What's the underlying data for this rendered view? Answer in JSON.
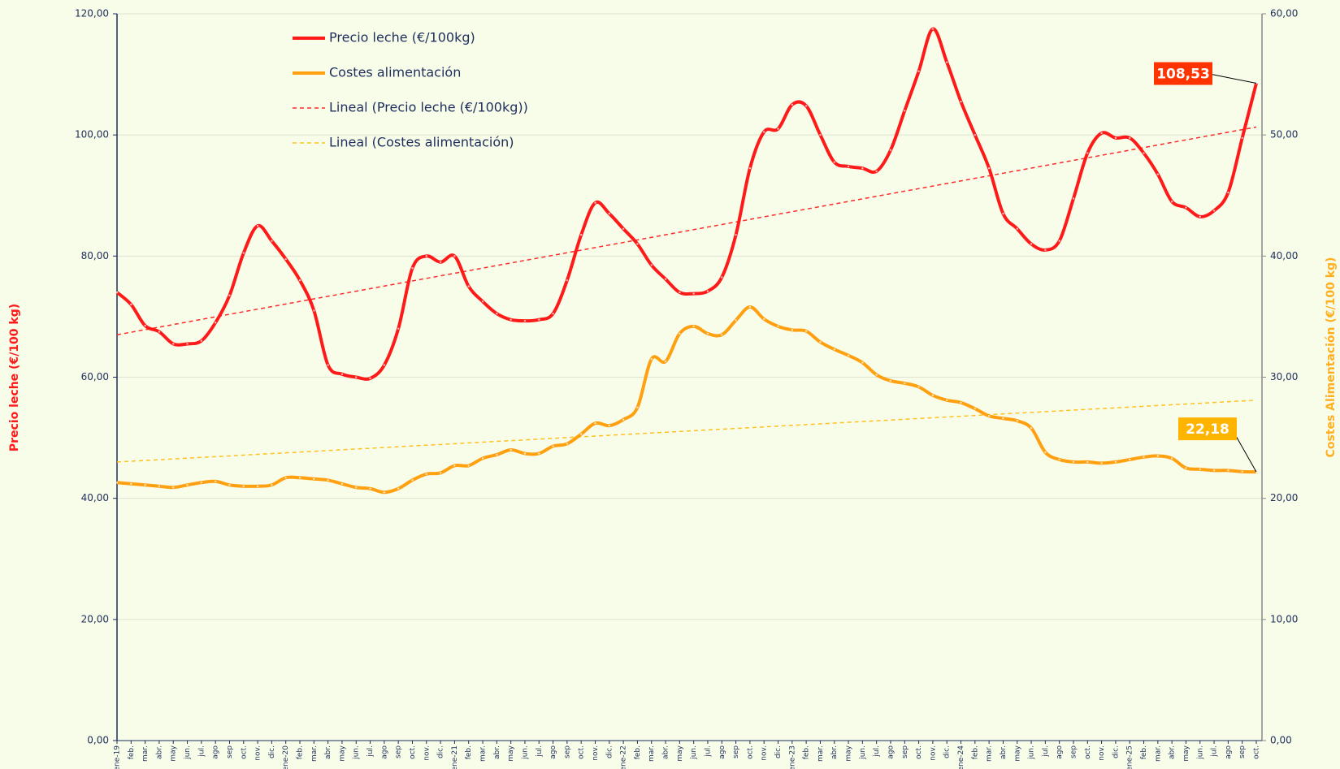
{
  "chart_data": {
    "type": "line",
    "categories": [
      "ene-19",
      "feb.",
      "mar.",
      "abr.",
      "may",
      "jun.",
      "jul.",
      "ago",
      "sep",
      "oct.",
      "nov.",
      "dic.",
      "ene-20",
      "feb.",
      "mar.",
      "abr.",
      "may",
      "jun.",
      "jul.",
      "ago",
      "sep",
      "oct.",
      "nov.",
      "dic.",
      "ene-21",
      "feb.",
      "mar.",
      "abr.",
      "may",
      "jun.",
      "jul.",
      "ago",
      "sep",
      "oct.",
      "nov.",
      "dic.",
      "ene-22",
      "feb.",
      "mar.",
      "abr.",
      "may",
      "jun.",
      "jul.",
      "ago",
      "sep",
      "oct.",
      "nov.",
      "dic.",
      "ene-23",
      "feb.",
      "mar.",
      "abr.",
      "may",
      "jun.",
      "jul.",
      "ago",
      "sep",
      "oct.",
      "nov.",
      "dic.",
      "ene-24",
      "feb.",
      "mar.",
      "abr.",
      "may",
      "jun.",
      "jul.",
      "ago",
      "sep",
      "oct.",
      "nov.",
      "dic.",
      "ene-25",
      "feb.",
      "mar.",
      "abr.",
      "may",
      "jun.",
      "jul.",
      "ago",
      "sep",
      "oct."
    ],
    "series": [
      {
        "name": "Precio leche (€/100kg)",
        "color": "#ff1a1a",
        "axis": "y",
        "values": [
          74,
          72,
          68.5,
          67.5,
          65.5,
          65.5,
          66,
          69,
          73.5,
          80.5,
          85,
          82.5,
          79.5,
          76,
          71,
          62,
          60.5,
          60,
          59.8,
          62,
          68,
          78,
          80,
          79,
          80,
          75,
          72.5,
          70.5,
          69.5,
          69.3,
          69.5,
          70.5,
          76,
          83.5,
          88.8,
          87,
          84.5,
          82,
          78.5,
          76.2,
          74,
          73.8,
          74.2,
          76.5,
          83.5,
          94.5,
          100.5,
          101,
          105,
          104.8,
          100,
          95.5,
          94.8,
          94.5,
          94,
          97.5,
          104,
          110.5,
          117.5,
          112,
          105.5,
          100,
          94.5,
          87,
          84.5,
          82,
          81,
          82.5,
          89.5,
          97,
          100.3,
          99.5,
          99.5,
          97,
          93.5,
          89,
          88,
          86.5,
          87.5,
          90.5,
          99.5,
          108.53
        ],
        "value_labels": [
          null,
          null,
          null,
          null,
          null,
          null,
          null,
          null,
          null,
          null,
          null,
          null,
          null,
          null,
          null,
          null,
          null,
          null,
          null,
          null,
          null,
          null,
          null,
          null,
          null,
          null,
          null,
          null,
          null,
          null,
          null,
          null,
          null,
          null,
          null,
          null,
          null,
          null,
          null,
          null,
          null,
          null,
          null,
          null,
          null,
          null,
          null,
          null,
          null,
          null,
          null,
          null,
          null,
          null,
          null,
          null,
          null,
          null,
          null,
          null,
          null,
          null,
          null,
          null,
          null,
          null,
          null,
          null,
          null,
          null,
          null,
          null,
          null,
          null,
          null,
          null,
          null,
          null,
          null,
          null,
          null,
          "108,53"
        ]
      },
      {
        "name": "Costes alimentación",
        "color": "#ffa010",
        "axis": "y2",
        "values": [
          21.3,
          21.2,
          21.1,
          21,
          20.9,
          21.1,
          21.3,
          21.4,
          21.1,
          21,
          21,
          21.1,
          21.7,
          21.7,
          21.6,
          21.5,
          21.2,
          20.9,
          20.8,
          20.5,
          20.8,
          21.5,
          22,
          22.1,
          22.7,
          22.7,
          23.3,
          23.6,
          24,
          23.7,
          23.7,
          24.3,
          24.5,
          25.3,
          26.2,
          26,
          26.5,
          27.5,
          31.5,
          31.3,
          33.6,
          34.2,
          33.6,
          33.5,
          34.7,
          35.8,
          34.8,
          34.2,
          33.9,
          33.8,
          32.9,
          32.3,
          31.8,
          31.2,
          30.2,
          29.7,
          29.5,
          29.2,
          28.5,
          28.1,
          27.9,
          27.4,
          26.8,
          26.6,
          26.4,
          25.8,
          23.8,
          23.2,
          23,
          23,
          22.9,
          23,
          23.2,
          23.4,
          23.5,
          23.3,
          22.5,
          22.4,
          22.3,
          22.3,
          22.2,
          22.18
        ],
        "value_labels": [
          null,
          null,
          null,
          null,
          null,
          null,
          null,
          null,
          null,
          null,
          null,
          null,
          null,
          null,
          null,
          null,
          null,
          null,
          null,
          null,
          null,
          null,
          null,
          null,
          null,
          null,
          null,
          null,
          null,
          null,
          null,
          null,
          null,
          null,
          null,
          null,
          null,
          null,
          null,
          null,
          null,
          null,
          null,
          null,
          null,
          null,
          null,
          null,
          null,
          null,
          null,
          null,
          null,
          null,
          null,
          null,
          null,
          null,
          null,
          null,
          null,
          null,
          null,
          null,
          null,
          null,
          null,
          null,
          null,
          null,
          null,
          null,
          null,
          null,
          null,
          null,
          null,
          null,
          null,
          null,
          null,
          "22,18"
        ]
      }
    ],
    "trendlines": [
      {
        "name": "Lineal (Precio leche (€/100kg))",
        "color": "#ff2a2a",
        "axis": "y",
        "start": 67,
        "end": 101.3
      },
      {
        "name": "Lineal (Costes alimentación)",
        "color": "#ffc020",
        "axis": "y2",
        "start": 23,
        "end": 28.1
      }
    ],
    "ylabel": "Precio leche (€/100 kg)",
    "y2label": "Costes Alimentación (€/100 kg)",
    "ylim": [
      0,
      120
    ],
    "yticks": [
      {
        "value": 0,
        "label": "0,00"
      },
      {
        "value": 20,
        "label": "20,00"
      },
      {
        "value": 40,
        "label": "40,00"
      },
      {
        "value": 60,
        "label": "60,00"
      },
      {
        "value": 80,
        "label": "80,00"
      },
      {
        "value": 100,
        "label": "100,00"
      },
      {
        "value": 120,
        "label": "120,00"
      }
    ],
    "y2lim": [
      0,
      60
    ],
    "y2ticks": [
      {
        "value": 0,
        "label": "0,00"
      },
      {
        "value": 10,
        "label": "10,00"
      },
      {
        "value": 20,
        "label": "20,00"
      },
      {
        "value": 30,
        "label": "30,00"
      },
      {
        "value": 40,
        "label": "40,00"
      },
      {
        "value": 50,
        "label": "50,00"
      },
      {
        "value": 60,
        "label": "60,00"
      }
    ],
    "grid": true
  }
}
